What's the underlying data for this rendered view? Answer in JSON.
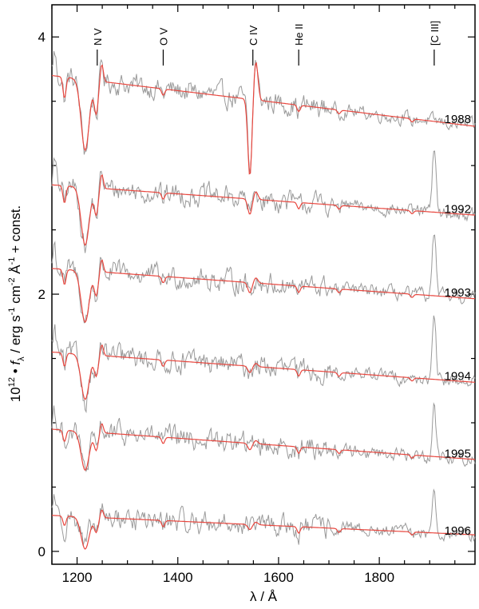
{
  "chart_data": {
    "type": "line",
    "xlabel": "λ / Å",
    "ylabel": "10¹² • fλ / erg s⁻¹ cm⁻² Å⁻¹ + const.",
    "ylabel_parts": {
      "prefix": "10",
      "prefix_exp": "12",
      "bullet": " • ",
      "f": "f",
      "f_sub": "λ",
      "unit1": " / erg s",
      "unit1_exp": "-1",
      "unit2": " cm",
      "unit2_exp": "-2",
      "unit3": " Å",
      "unit3_exp": "-1",
      "suffix": "  + const."
    },
    "xlim": [
      1150,
      1990
    ],
    "ylim": [
      -0.1,
      4.25
    ],
    "x_ticks": [
      1200,
      1400,
      1600,
      1800
    ],
    "x_tick_labels": [
      "1200",
      "1400",
      "1600",
      "1800"
    ],
    "y_ticks": [
      0,
      2,
      4
    ],
    "y_tick_labels": [
      "0",
      "2",
      "4"
    ],
    "line_markers": [
      {
        "label": "N V",
        "x": 1240
      },
      {
        "label": "O V",
        "x": 1371
      },
      {
        "label": "C IV",
        "x": 1549
      },
      {
        "label": "He II",
        "x": 1640
      },
      {
        "label": "[C III]",
        "x": 1909
      }
    ],
    "spectra": [
      {
        "year": "1988",
        "offset": 3.3,
        "continuum_1150": 0.4,
        "slope": -0.00047,
        "nv_depth": 0.55,
        "civ_depth": 0.6,
        "ciii_peak": 0.0
      },
      {
        "year": "1992",
        "offset": 2.6,
        "continuum_1150": 0.25,
        "slope": -0.00028,
        "nv_depth": 0.45,
        "civ_depth": 0.12,
        "ciii_peak": 0.5
      },
      {
        "year": "1993",
        "offset": 1.95,
        "continuum_1150": 0.25,
        "slope": -0.00028,
        "nv_depth": 0.4,
        "civ_depth": 0.08,
        "ciii_peak": 0.5
      },
      {
        "year": "1994",
        "offset": 1.3,
        "continuum_1150": 0.25,
        "slope": -0.00028,
        "nv_depth": 0.35,
        "civ_depth": 0.05,
        "ciii_peak": 0.45
      },
      {
        "year": "1995",
        "offset": 0.7,
        "continuum_1150": 0.25,
        "slope": -0.00028,
        "nv_depth": 0.3,
        "civ_depth": 0.05,
        "ciii_peak": 0.4
      },
      {
        "year": "1996",
        "offset": 0.1,
        "continuum_1150": 0.18,
        "slope": -0.00018,
        "nv_depth": 0.25,
        "civ_depth": 0.04,
        "ciii_peak": 0.32
      }
    ],
    "series_colors": {
      "observed": "#9a9a9a",
      "model": "#e8473f"
    },
    "grid": false
  }
}
